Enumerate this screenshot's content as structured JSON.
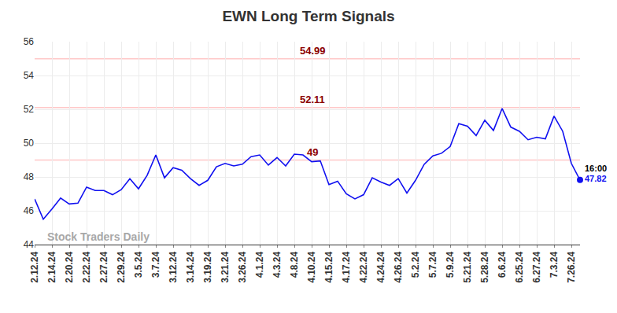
{
  "chart_data": {
    "type": "line",
    "title": "EWN Long Term Signals",
    "categories": [
      "2.12.24",
      null,
      "2.14.24",
      null,
      "2.20.24",
      null,
      "2.22.24",
      null,
      "2.27.24",
      null,
      "2.29.24",
      null,
      "3.5.24",
      null,
      "3.7.24",
      null,
      "3.12.24",
      null,
      "3.14.24",
      null,
      "3.19.24",
      null,
      "3.21.24",
      null,
      "3.26.24",
      null,
      "4.1.24",
      null,
      "4.3.24",
      null,
      "4.8.24",
      null,
      "4.10.24",
      null,
      "4.15.24",
      null,
      "4.17.24",
      null,
      "4.22.24",
      null,
      "4.24.24",
      null,
      "4.26.24",
      null,
      "5.2.24",
      null,
      "5.7.24",
      null,
      "5.9.24",
      null,
      "5.21.24",
      null,
      "5.28.24",
      null,
      "6.6.24",
      null,
      "6.25.24",
      null,
      "6.27.24",
      null,
      "7.3.24",
      null,
      "7.26.24",
      null
    ],
    "values": [
      46.7,
      45.5,
      46.1,
      46.75,
      46.4,
      46.45,
      47.4,
      47.2,
      47.2,
      46.95,
      47.25,
      47.9,
      47.3,
      48.1,
      49.3,
      47.95,
      48.55,
      48.4,
      47.9,
      47.5,
      47.8,
      48.6,
      48.8,
      48.65,
      48.75,
      49.2,
      49.3,
      48.7,
      49.15,
      48.65,
      49.35,
      49.3,
      48.9,
      48.95,
      47.55,
      47.75,
      47.0,
      46.7,
      46.95,
      47.95,
      47.7,
      47.5,
      47.9,
      47.05,
      47.8,
      48.75,
      49.25,
      49.4,
      49.8,
      51.15,
      51.0,
      50.45,
      51.35,
      50.75,
      52.05,
      50.95,
      50.7,
      50.2,
      50.35,
      50.25,
      51.6,
      50.7,
      48.8,
      47.82
    ],
    "color": "#1010f0",
    "levels": [
      54.99,
      52.11,
      49
    ],
    "end_label": "16:00",
    "watermark": "Stock Traders Daily",
    "ylim": [
      44,
      56
    ],
    "yticks": [
      44,
      46,
      48,
      50,
      52,
      54,
      56
    ],
    "grid": true
  }
}
